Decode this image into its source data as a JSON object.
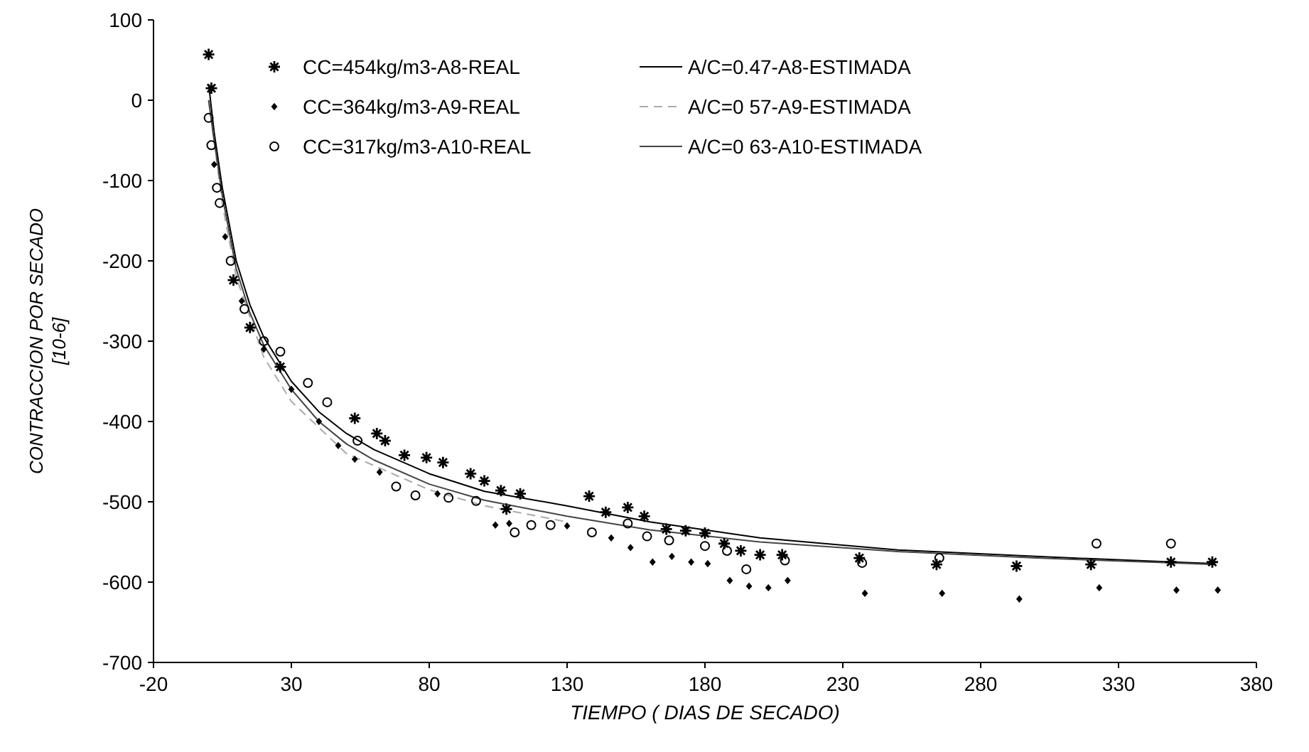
{
  "chart_data": {
    "type": "scatter",
    "xlabel": "TIEMPO ( DIAS DE SECADO)",
    "ylabel": "CONTRACCION POR SECADO\n[10-6]",
    "xlim": [
      -20,
      380
    ],
    "xticks": [
      -20,
      30,
      80,
      130,
      180,
      230,
      280,
      330,
      380
    ],
    "ylim": [
      -700,
      100
    ],
    "yticks": [
      -700,
      -600,
      -500,
      -400,
      -300,
      -200,
      -100,
      0,
      100
    ],
    "legend": "top",
    "grid": false,
    "series": [
      {
        "name": "CC=454kg/m3-A8-REAL",
        "marker": "cross",
        "color": "#000000",
        "x": [
          0,
          1,
          9,
          15,
          26,
          53,
          61,
          64,
          71,
          79,
          85,
          95,
          100,
          106,
          108,
          113,
          138,
          144,
          152,
          158,
          166,
          173,
          180,
          187,
          193,
          200,
          208,
          236,
          264,
          293,
          320,
          349,
          364
        ],
        "values": [
          57,
          15,
          -224,
          -283,
          -332,
          -396,
          -415,
          -424,
          -442,
          -445,
          -451,
          -465,
          -474,
          -486,
          -509,
          -490,
          -493,
          -513,
          -507,
          -518,
          -534,
          -536,
          -539,
          -552,
          -561,
          -566,
          -566,
          -570,
          -578,
          -580,
          -578,
          -575,
          -575
        ]
      },
      {
        "name": "CC=364kg/m3-A9-REAL",
        "marker": "diamond",
        "color": "#000000",
        "x": [
          2,
          6,
          12,
          20,
          30,
          40,
          47,
          53,
          62,
          83,
          104,
          109,
          130,
          146,
          153,
          161,
          168,
          175,
          181,
          189,
          196,
          203,
          210,
          238,
          266,
          294,
          323,
          351,
          366
        ],
        "values": [
          -80,
          -170,
          -250,
          -310,
          -360,
          -400,
          -430,
          -447,
          -463,
          -490,
          -529,
          -527,
          -530,
          -545,
          -557,
          -575,
          -568,
          -575,
          -577,
          -598,
          -605,
          -607,
          -598,
          -614,
          -614,
          -621,
          -607,
          -610,
          -610
        ]
      },
      {
        "name": "CC=317kg/m3-A10-REAL",
        "marker": "circle",
        "color": "#000000",
        "x": [
          0,
          1,
          3,
          4,
          8,
          13,
          20,
          26,
          36,
          43,
          54,
          68,
          75,
          87,
          97,
          111,
          117,
          124,
          139,
          152,
          159,
          167,
          180,
          188,
          195,
          209,
          237,
          265,
          322,
          349
        ],
        "values": [
          -22,
          -56,
          -109,
          -128,
          -200,
          -260,
          -300,
          -313,
          -352,
          -376,
          -424,
          -481,
          -492,
          -495,
          -499,
          -538,
          -529,
          -529,
          -538,
          -527,
          -543,
          -548,
          -555,
          -561,
          -584,
          -573,
          -576,
          -570,
          -552,
          -552
        ]
      },
      {
        "name": "A/C=0.47-A8-ESTIMADA",
        "type": "line",
        "marker": "none",
        "line_style": "solid",
        "color": "#000000",
        "x": [
          0,
          2,
          5,
          10,
          15,
          20,
          30,
          40,
          50,
          60,
          80,
          100,
          130,
          160,
          200,
          250,
          300,
          350,
          365
        ],
        "values": [
          20,
          -40,
          -110,
          -200,
          -255,
          -295,
          -350,
          -388,
          -415,
          -435,
          -465,
          -487,
          -505,
          -525,
          -545,
          -560,
          -568,
          -575,
          -577
        ]
      },
      {
        "name": "A/C=0 57-A9-ESTIMADA",
        "type": "line",
        "marker": "none",
        "line_style": "dashed",
        "color": "#aaaaaa",
        "x": [
          0,
          5,
          10,
          20,
          30,
          50,
          80,
          100,
          130
        ],
        "values": [
          0,
          -130,
          -220,
          -320,
          -375,
          -440,
          -485,
          -505,
          -525
        ]
      },
      {
        "name": "A/C=0 63-A10-ESTIMADA",
        "type": "line",
        "marker": "none",
        "line_style": "solid",
        "color": "#444444",
        "x": [
          0,
          2,
          5,
          10,
          15,
          20,
          30,
          40,
          50,
          60,
          80,
          100,
          130,
          160,
          200,
          250,
          300,
          350,
          365
        ],
        "values": [
          0,
          -50,
          -120,
          -210,
          -265,
          -305,
          -360,
          -400,
          -428,
          -448,
          -478,
          -498,
          -518,
          -535,
          -550,
          -562,
          -570,
          -576,
          -578
        ]
      }
    ]
  }
}
